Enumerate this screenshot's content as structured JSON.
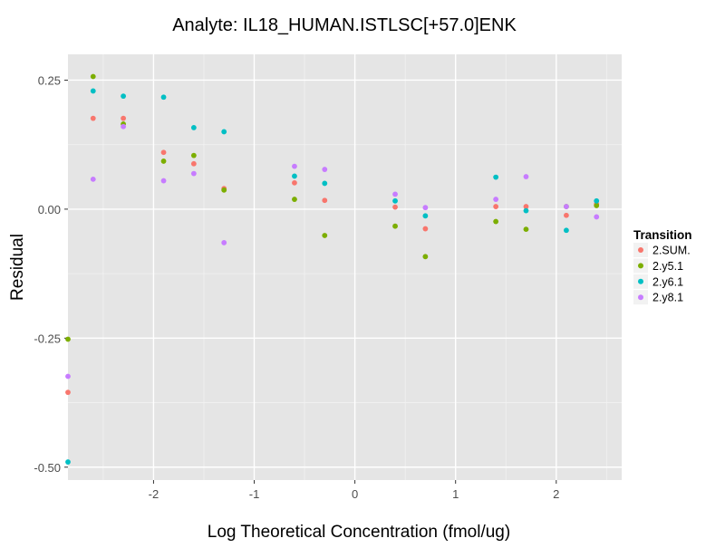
{
  "chart_data": {
    "type": "scatter",
    "title": "Analyte: IL18_HUMAN.ISTLSC[+57.0]ENK",
    "xlabel": "Log Theoretical Concentration (fmol/ug)",
    "ylabel": "Residual",
    "xlim": [
      -2.85,
      2.65
    ],
    "ylim": [
      -0.525,
      0.3
    ],
    "x_ticks": [
      -2,
      -1,
      0,
      1,
      2
    ],
    "x_tick_labels": [
      "-2",
      "-1",
      "0",
      "1",
      "2"
    ],
    "y_ticks": [
      -0.5,
      -0.25,
      0.0,
      0.25
    ],
    "y_tick_labels": [
      "-0.50",
      "-0.25",
      "0.00",
      "0.25"
    ],
    "grid": true,
    "panel_background": "#E5E5E5",
    "grid_color": "#FFFFFF",
    "legend": {
      "title": "Transition",
      "position": "right"
    },
    "series": [
      {
        "name": "2.SUM.",
        "color": "#F8766D",
        "points": [
          [
            -2.85,
            -0.355
          ],
          [
            -2.6,
            0.176
          ],
          [
            -2.3,
            0.176
          ],
          [
            -1.9,
            0.11
          ],
          [
            -1.6,
            0.088
          ],
          [
            -1.3,
            0.04
          ],
          [
            -0.6,
            0.051
          ],
          [
            -0.3,
            0.017
          ],
          [
            0.4,
            0.004
          ],
          [
            0.7,
            -0.038
          ],
          [
            1.4,
            0.005
          ],
          [
            1.7,
            0.005
          ],
          [
            2.1,
            -0.012
          ],
          [
            2.4,
            0.01
          ]
        ]
      },
      {
        "name": "2.y5.1",
        "color": "#7CAE00",
        "points": [
          [
            -2.85,
            -0.252
          ],
          [
            -2.6,
            0.257
          ],
          [
            -2.3,
            0.165
          ],
          [
            -1.9,
            0.093
          ],
          [
            -1.6,
            0.104
          ],
          [
            -1.3,
            0.037
          ],
          [
            -0.6,
            0.019
          ],
          [
            -0.3,
            -0.051
          ],
          [
            0.4,
            -0.033
          ],
          [
            0.7,
            -0.092
          ],
          [
            1.4,
            -0.024
          ],
          [
            1.7,
            -0.039
          ],
          [
            2.1,
            0.005
          ],
          [
            2.4,
            0.007
          ]
        ]
      },
      {
        "name": "2.y6.1",
        "color": "#00BFC4",
        "points": [
          [
            -2.85,
            -0.49
          ],
          [
            -2.6,
            0.229
          ],
          [
            -2.3,
            0.219
          ],
          [
            -1.9,
            0.217
          ],
          [
            -1.6,
            0.158
          ],
          [
            -1.3,
            0.15
          ],
          [
            -0.6,
            0.064
          ],
          [
            -0.3,
            0.05
          ],
          [
            0.4,
            0.016
          ],
          [
            0.7,
            -0.013
          ],
          [
            1.4,
            0.062
          ],
          [
            1.7,
            -0.003
          ],
          [
            2.1,
            -0.041
          ],
          [
            2.4,
            0.016
          ]
        ]
      },
      {
        "name": "2.y8.1",
        "color": "#C77CFF",
        "points": [
          [
            -2.85,
            -0.324
          ],
          [
            -2.6,
            0.058
          ],
          [
            -2.3,
            0.16
          ],
          [
            -1.9,
            0.055
          ],
          [
            -1.6,
            0.069
          ],
          [
            -1.3,
            -0.065
          ],
          [
            -0.6,
            0.083
          ],
          [
            -0.3,
            0.077
          ],
          [
            0.4,
            0.029
          ],
          [
            0.7,
            0.003
          ],
          [
            1.4,
            0.019
          ],
          [
            1.7,
            0.063
          ],
          [
            2.1,
            0.005
          ],
          [
            2.4,
            -0.015
          ]
        ]
      }
    ]
  }
}
